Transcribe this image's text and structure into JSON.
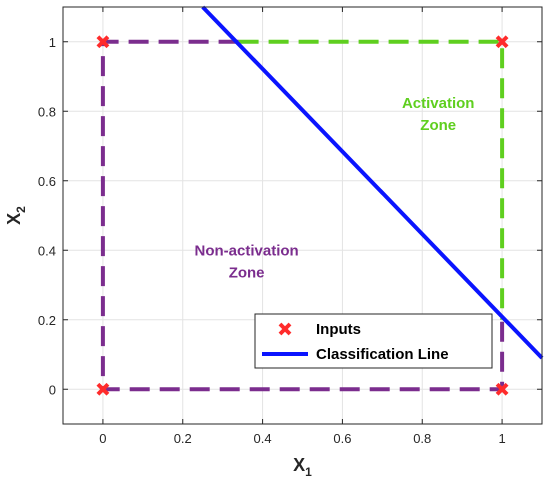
{
  "chart_data": {
    "type": "line",
    "xlabel": {
      "main": "X",
      "sub": "1"
    },
    "ylabel": {
      "main": "X",
      "sub": "2"
    },
    "xlim": [
      -0.1,
      1.1
    ],
    "ylim": [
      -0.1,
      1.1
    ],
    "xticks": [
      0,
      0.2,
      0.4,
      0.6,
      0.8,
      1
    ],
    "yticks": [
      0,
      0.2,
      0.4,
      0.6,
      0.8,
      1
    ],
    "xtick_labels": [
      "0",
      "0.2",
      "0.4",
      "0.6",
      "0.8",
      "1"
    ],
    "ytick_labels": [
      "0",
      "0.2",
      "0.4",
      "0.6",
      "0.8",
      "1"
    ],
    "grid": true,
    "colors": {
      "non_activation": "#7b2d8e",
      "activation": "#5fcf1f",
      "inputs": "#ff2b2b",
      "classification_line": "#0a14ff"
    },
    "inputs": {
      "name": "Inputs",
      "points": [
        [
          0,
          0
        ],
        [
          0,
          1
        ],
        [
          1,
          0
        ],
        [
          1,
          1
        ]
      ]
    },
    "classification_line": {
      "name": "Classification Line",
      "points": [
        [
          0.25,
          1.1
        ],
        [
          1.1,
          0.09
        ]
      ]
    },
    "non_activation_boundary": [
      [
        0.34,
        1
      ],
      [
        0,
        1
      ],
      [
        0,
        0
      ],
      [
        1,
        0
      ],
      [
        1,
        0.2
      ]
    ],
    "activation_boundary": [
      [
        0.34,
        1
      ],
      [
        1,
        1
      ],
      [
        1,
        0.2
      ]
    ],
    "annotations": [
      {
        "lines": [
          "Activation",
          "Zone"
        ],
        "x": 0.84,
        "y": 0.81,
        "zone": "activation"
      },
      {
        "lines": [
          "Non-activation",
          "Zone"
        ],
        "x": 0.36,
        "y": 0.385,
        "zone": "non_activation"
      }
    ],
    "legend": {
      "placement": "bottom-right",
      "entries": [
        "Inputs",
        "Classification Line"
      ]
    }
  }
}
